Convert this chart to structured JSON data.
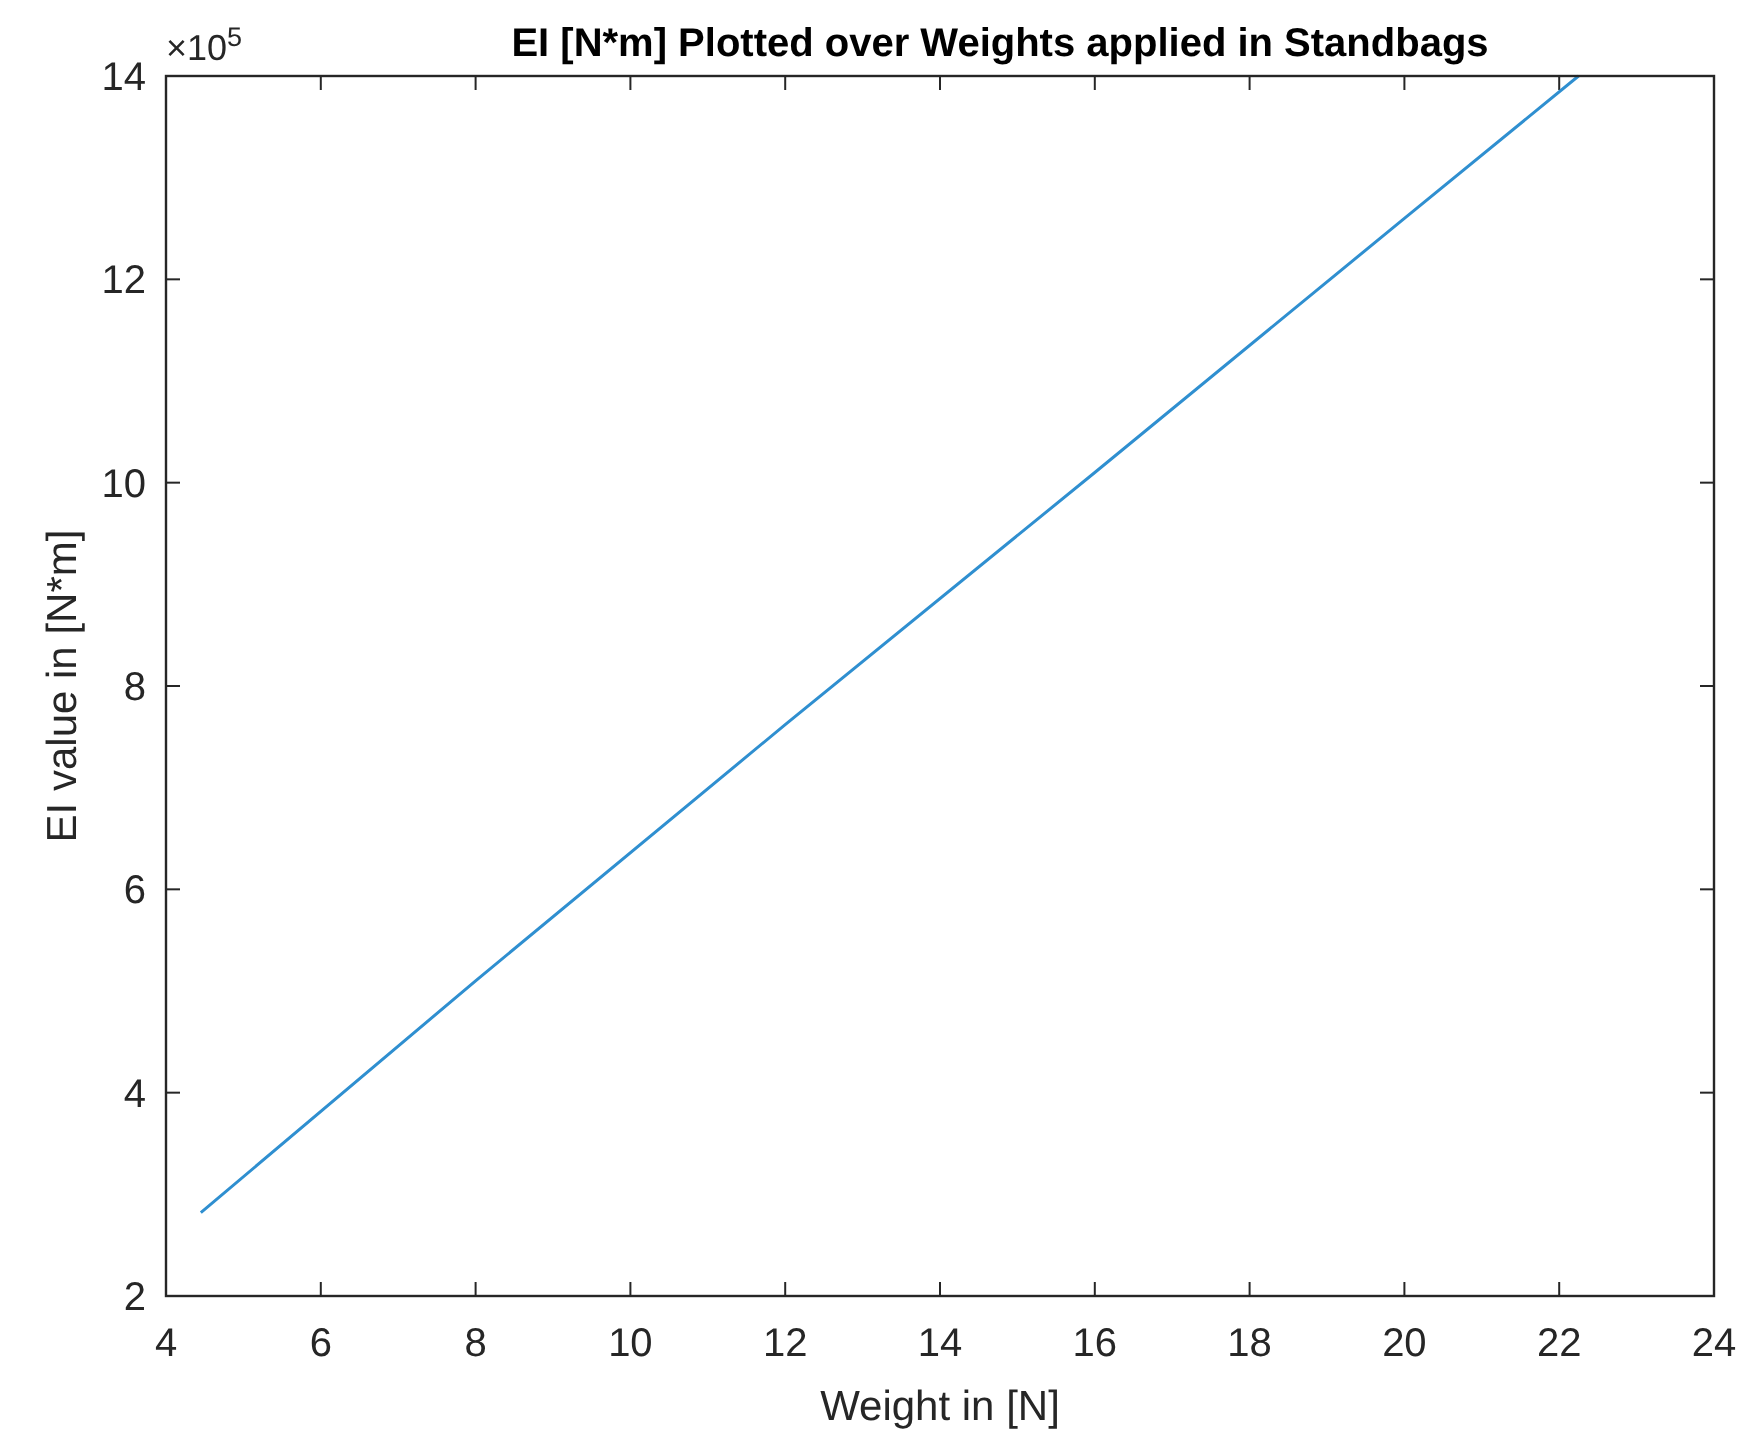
{
  "chart_data": {
    "type": "line",
    "title": "EI [N*m] Plotted over Weights applied in Standbags",
    "xlabel": "Weight in [N]",
    "ylabel": "EI value in [N*m]",
    "annotations": [
      "×10$^{5}$"
    ],
    "series": [
      {
        "color": "#2f8fd0",
        "x": [
          4.45,
          8,
          12,
          16,
          20,
          22.25
        ],
        "values": [
          2.82,
          5.1,
          7.62,
          10.1,
          12.6,
          14
        ]
      }
    ],
    "xlim": [
      4,
      24
    ],
    "ylim": [
      2,
      14
    ],
    "xticks": [
      4,
      6,
      8,
      10,
      12,
      14,
      16,
      18,
      20,
      22,
      24
    ],
    "yticks": [
      2,
      4,
      6,
      8,
      10,
      12,
      14
    ],
    "grid": false,
    "marker": "none",
    "line_style": "solid"
  }
}
